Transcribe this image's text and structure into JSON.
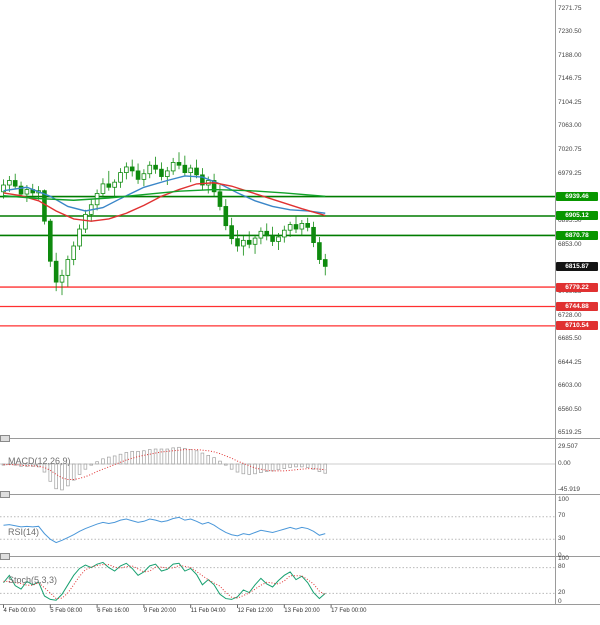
{
  "colors": {
    "background": "#ffffff",
    "candle": "#0e8a0e",
    "bull_fill": "#ffffff",
    "bear_fill": "#0e8a0e",
    "ma_fast": "#3a86c8",
    "ma_slow": "#e03131",
    "ma_trend": "#11a229",
    "resistance_line": "#007c00",
    "support_line": "#ff3030",
    "resistance_badge": "#089600",
    "support_badge": "#e03131",
    "current_badge": "#141414",
    "macd_histogram": "#a0a0a0",
    "macd_signal": "#e03131",
    "rsi_line": "#4a97d9",
    "stoch_k": "#18a070",
    "stoch_d": "#e03131",
    "axis_text": "#444444",
    "separator": "#9a9a9a"
  },
  "price_axis": {
    "ticks": [
      "7271.75",
      "7230.50",
      "7188.00",
      "7146.75",
      "7104.25",
      "7063.00",
      "7020.75",
      "6979.25",
      "6895.50",
      "6853.00",
      "6769.25",
      "6728.00",
      "6685.50",
      "6644.25",
      "6603.00",
      "6560.50",
      "6519.25"
    ]
  },
  "chart_data": [
    {
      "type": "candlestick",
      "title": "",
      "price_range": [
        6519.25,
        7271.75
      ],
      "x_labels": [
        "4 Feb 00:00",
        "5 Feb 08:00",
        "6 Feb 16:00",
        "9 Feb 20:00",
        "11 Feb 04:00",
        "12 Feb 12:00",
        "13 Feb 20:00",
        "17 Feb 00:00"
      ],
      "x_label_candle_index": [
        0,
        8,
        16,
        24,
        32,
        40,
        48,
        56
      ],
      "horizontal_levels": {
        "resistance": [
          6939.46,
          6905.12,
          6870.78
        ],
        "support": [
          6779.22,
          6744.88,
          6710.54
        ],
        "current_price": 6815.87
      },
      "candles": [
        [
          6948,
          6970,
          6936,
          6960
        ],
        [
          6960,
          6976,
          6948,
          6968
        ],
        [
          6968,
          6980,
          6952,
          6958
        ],
        [
          6958,
          6966,
          6938,
          6944
        ],
        [
          6944,
          6960,
          6930,
          6952
        ],
        [
          6952,
          6962,
          6940,
          6946
        ],
        [
          6946,
          6958,
          6934,
          6950
        ],
        [
          6950,
          6952,
          6890,
          6896
        ],
        [
          6896,
          6900,
          6815,
          6825
        ],
        [
          6825,
          6840,
          6772,
          6788
        ],
        [
          6788,
          6810,
          6765,
          6800
        ],
        [
          6800,
          6835,
          6780,
          6828
        ],
        [
          6828,
          6860,
          6818,
          6852
        ],
        [
          6852,
          6890,
          6845,
          6882
        ],
        [
          6882,
          6916,
          6875,
          6908
        ],
        [
          6908,
          6935,
          6895,
          6925
        ],
        [
          6925,
          6952,
          6915,
          6945
        ],
        [
          6945,
          6972,
          6938,
          6962
        ],
        [
          6962,
          6985,
          6950,
          6956
        ],
        [
          6956,
          6970,
          6940,
          6965
        ],
        [
          6965,
          6990,
          6955,
          6982
        ],
        [
          6982,
          7000,
          6970,
          6992
        ],
        [
          6992,
          7005,
          6975,
          6985
        ],
        [
          6985,
          6998,
          6962,
          6970
        ],
        [
          6970,
          6988,
          6958,
          6980
        ],
        [
          6980,
          7002,
          6972,
          6995
        ],
        [
          6995,
          7010,
          6980,
          6988
        ],
        [
          6988,
          7000,
          6968,
          6975
        ],
        [
          6975,
          6992,
          6960,
          6985
        ],
        [
          6985,
          7008,
          6978,
          7000
        ],
        [
          7000,
          7018,
          6988,
          6995
        ],
        [
          6995,
          7012,
          6975,
          6982
        ],
        [
          6982,
          6996,
          6965,
          6990
        ],
        [
          6990,
          7005,
          6972,
          6978
        ],
        [
          6978,
          6990,
          6952,
          6960
        ],
        [
          6960,
          6975,
          6945,
          6968
        ],
        [
          6968,
          6980,
          6940,
          6948
        ],
        [
          6948,
          6960,
          6915,
          6922
        ],
        [
          6922,
          6935,
          6880,
          6888
        ],
        [
          6888,
          6902,
          6855,
          6865
        ],
        [
          6865,
          6880,
          6842,
          6852
        ],
        [
          6852,
          6870,
          6835,
          6862
        ],
        [
          6862,
          6878,
          6848,
          6855
        ],
        [
          6855,
          6872,
          6838,
          6866
        ],
        [
          6866,
          6885,
          6855,
          6878
        ],
        [
          6878,
          6892,
          6862,
          6870
        ],
        [
          6870,
          6886,
          6852,
          6860
        ],
        [
          6860,
          6875,
          6845,
          6868
        ],
        [
          6868,
          6888,
          6858,
          6880
        ],
        [
          6880,
          6895,
          6868,
          6890
        ],
        [
          6890,
          6905,
          6875,
          6882
        ],
        [
          6882,
          6898,
          6870,
          6892
        ],
        [
          6892,
          6902,
          6878,
          6885
        ],
        [
          6885,
          6895,
          6850,
          6858
        ],
        [
          6858,
          6868,
          6820,
          6828
        ],
        [
          6828,
          6838,
          6800,
          6815.87
        ]
      ],
      "moving_averages": [
        {
          "name": "fast-blue",
          "color": "#3a86c8",
          "points": [
            [
              0,
              6950
            ],
            [
              4,
              6956
            ],
            [
              8,
              6940
            ],
            [
              11,
              6922
            ],
            [
              14,
              6914
            ],
            [
              17,
              6920
            ],
            [
              20,
              6936
            ],
            [
              24,
              6956
            ],
            [
              28,
              6968
            ],
            [
              31,
              6976
            ],
            [
              34,
              6974
            ],
            [
              37,
              6962
            ],
            [
              40,
              6946
            ],
            [
              43,
              6932
            ],
            [
              46,
              6922
            ],
            [
              49,
              6916
            ],
            [
              52,
              6914
            ],
            [
              55,
              6910
            ]
          ]
        },
        {
          "name": "slow-red",
          "color": "#e03131",
          "points": [
            [
              0,
              6946
            ],
            [
              3,
              6941
            ],
            [
              6,
              6932
            ],
            [
              9,
              6914
            ],
            [
              12,
              6900
            ],
            [
              15,
              6896
            ],
            [
              18,
              6900
            ],
            [
              21,
              6910
            ],
            [
              24,
              6924
            ],
            [
              27,
              6940
            ],
            [
              30,
              6952
            ],
            [
              33,
              6962
            ],
            [
              36,
              6964
            ],
            [
              39,
              6958
            ],
            [
              42,
              6948
            ],
            [
              45,
              6938
            ],
            [
              48,
              6928
            ],
            [
              51,
              6918
            ],
            [
              54,
              6909
            ],
            [
              55,
              6906
            ]
          ]
        },
        {
          "name": "trend-green",
          "color": "#11a229",
          "points": [
            [
              0,
              6941
            ],
            [
              6,
              6936
            ],
            [
              12,
              6933
            ],
            [
              18,
              6937
            ],
            [
              24,
              6943
            ],
            [
              30,
              6949
            ],
            [
              36,
              6952
            ],
            [
              42,
              6950
            ],
            [
              48,
              6946
            ],
            [
              55,
              6940
            ]
          ]
        }
      ]
    },
    {
      "type": "macd",
      "title": "MACD(12,26,9)",
      "y_ticks": [
        {
          "v": 29.507,
          "label": "29.507"
        },
        {
          "v": 0,
          "label": "0.00"
        },
        {
          "v": -45.919,
          "label": "-45.919"
        }
      ],
      "histogram": [
        -2,
        -1,
        -2,
        -4,
        -4,
        -4,
        -5,
        -14,
        -30,
        -43,
        -45,
        -38,
        -28,
        -18,
        -9,
        -2,
        4,
        9,
        12,
        14,
        17,
        20,
        22,
        22,
        23,
        25,
        26,
        26,
        26,
        28,
        29,
        27,
        25,
        23,
        19,
        15,
        11,
        5,
        -2,
        -9,
        -14,
        -17,
        -18,
        -17,
        -15,
        -13,
        -12,
        -10,
        -8,
        -6,
        -5,
        -5,
        -6,
        -9,
        -13,
        -16
      ],
      "signal": [
        -1,
        -1,
        -1,
        -2,
        -3,
        -3,
        -4,
        -6,
        -11,
        -18,
        -24,
        -27,
        -27,
        -25,
        -22,
        -18,
        -13,
        -9,
        -5,
        -1,
        3,
        7,
        10,
        13,
        15,
        17,
        19,
        21,
        22,
        23,
        24,
        25,
        25,
        25,
        24,
        23,
        21,
        18,
        14,
        10,
        5,
        1,
        -3,
        -7,
        -9,
        -11,
        -12,
        -12,
        -12,
        -11,
        -10,
        -9,
        -8,
        -8,
        -9,
        -10
      ]
    },
    {
      "type": "rsi",
      "title": "RSI(14)",
      "y_ticks": [
        {
          "v": 100,
          "label": "100"
        },
        {
          "v": 70,
          "label": "70"
        },
        {
          "v": 30,
          "label": "30"
        },
        {
          "v": 0,
          "label": "0"
        }
      ],
      "guides": [
        70,
        30
      ],
      "values": [
        55,
        56,
        54,
        52,
        53,
        52,
        53,
        40,
        30,
        24,
        28,
        33,
        38,
        44,
        49,
        53,
        57,
        60,
        58,
        60,
        64,
        66,
        63,
        60,
        62,
        66,
        64,
        61,
        63,
        67,
        69,
        64,
        66,
        62,
        57,
        60,
        55,
        48,
        42,
        38,
        36,
        40,
        38,
        42,
        46,
        44,
        42,
        45,
        48,
        51,
        48,
        51,
        49,
        44,
        37,
        40
      ]
    },
    {
      "type": "stoch",
      "title": "Stoch(5,3,3)",
      "y_ticks": [
        {
          "v": 100,
          "label": "100"
        },
        {
          "v": 80,
          "label": "80"
        },
        {
          "v": 20,
          "label": "20"
        },
        {
          "v": 0,
          "label": "0"
        }
      ],
      "guides": [
        80,
        20
      ],
      "k": [
        45,
        62,
        38,
        30,
        48,
        40,
        46,
        14,
        6,
        4,
        18,
        40,
        62,
        78,
        86,
        80,
        88,
        92,
        80,
        72,
        84,
        90,
        78,
        62,
        70,
        84,
        88,
        72,
        76,
        88,
        90,
        72,
        78,
        64,
        40,
        52,
        40,
        18,
        8,
        6,
        12,
        28,
        22,
        40,
        55,
        42,
        35,
        50,
        62,
        70,
        52,
        60,
        45,
        22,
        8,
        20
      ],
      "d": [
        48,
        48,
        45,
        43,
        39,
        39,
        45,
        33,
        21,
        8,
        9,
        21,
        40,
        60,
        75,
        81,
        85,
        87,
        87,
        81,
        79,
        82,
        84,
        77,
        70,
        72,
        81,
        81,
        79,
        79,
        85,
        83,
        80,
        71,
        61,
        52,
        44,
        37,
        22,
        11,
        9,
        15,
        21,
        30,
        39,
        46,
        44,
        42,
        49,
        61,
        61,
        61,
        52,
        42,
        25,
        17
      ]
    }
  ]
}
